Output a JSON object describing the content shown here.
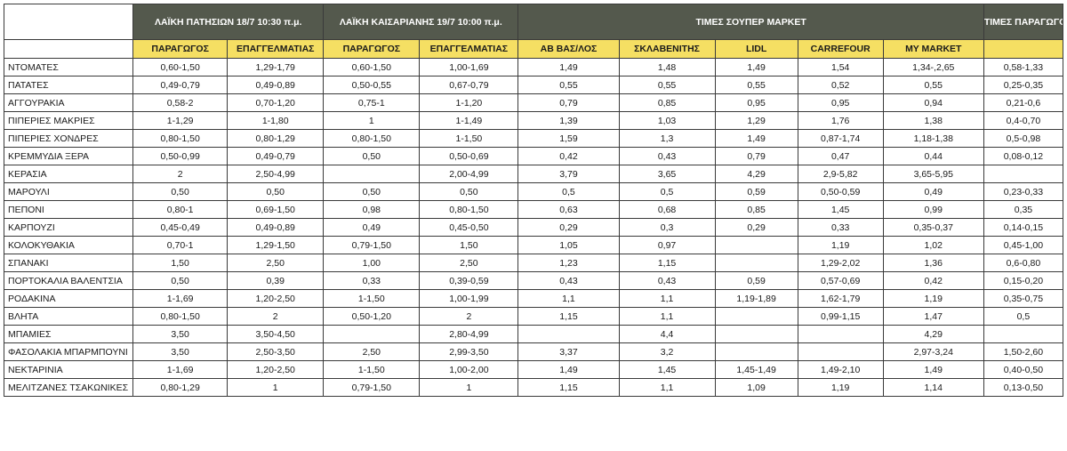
{
  "groups": {
    "g1": "ΛΑΪΚΗ ΠΑΤΗΣΙΩΝ 18/7 10:30 π.μ.",
    "g2": "ΛΑΪΚΗ ΚΑΙΣΑΡΙΑΝΗΣ 19/7 10:00 π.μ.",
    "g3": "ΤΙΜΕΣ ΣΟΥΠΕΡ ΜΑΡΚΕΤ",
    "g4": "ΤΙΜΕΣ ΠΑΡΑΓΩΓΟΥ"
  },
  "columns": [
    "ΠΑΡΑΓΩΓΟΣ",
    "ΕΠΑΓΓΕΛΜΑΤΙΑΣ",
    "ΠΑΡΑΓΩΓΟΣ",
    "ΕΠΑΓΓΕΛΜΑΤΙΑΣ",
    "ΑΒ ΒΑΣ/ΛΟΣ",
    "ΣΚΛΑΒΕΝΙΤΗΣ",
    "LIDL",
    "CARREFOUR",
    "MY MARKET",
    ""
  ],
  "rows": [
    [
      "ΝΤΟΜΑΤΕΣ",
      "0,60-1,50",
      "1,29-1,79",
      "0,60-1,50",
      "1,00-1,69",
      "1,49",
      "1,48",
      "1,49",
      "1,54",
      "1,34-,2,65",
      "0,58-1,33"
    ],
    [
      "ΠΑΤΑΤΕΣ",
      "0,49-0,79",
      "0,49-0,89",
      "0,50-0,55",
      "0,67-0,79",
      "0,55",
      "0,55",
      "0,55",
      "0,52",
      "0,55",
      "0,25-0,35"
    ],
    [
      "ΑΓΓΟΥΡΑΚΙΑ",
      "0,58-2",
      "0,70-1,20",
      "0,75-1",
      "1-1,20",
      "0,79",
      "0,85",
      "0,95",
      "0,95",
      "0,94",
      "0,21-0,6"
    ],
    [
      "ΠΙΠΕΡΙΕΣ ΜΑΚΡΙΕΣ",
      "1-1,29",
      "1-1,80",
      "1",
      "1-1,49",
      "1,39",
      "1,03",
      "1,29",
      "1,76",
      "1,38",
      "0,4-0,70"
    ],
    [
      "ΠΙΠΕΡΙΕΣ ΧΟΝΔΡΕΣ",
      "0,80-1,50",
      "0,80-1,29",
      "0,80-1,50",
      "1-1,50",
      "1,59",
      "1,3",
      "1,49",
      "0,87-1,74",
      "1,18-1,38",
      "0,5-0,98"
    ],
    [
      "ΚΡΕΜΜΥΔΙΑ ΞΕΡΑ",
      "0,50-0,99",
      "0,49-0,79",
      "0,50",
      "0,50-0,69",
      "0,42",
      "0,43",
      "0,79",
      "0,47",
      "0,44",
      "0,08-0,12"
    ],
    [
      "ΚΕΡΑΣΙΑ",
      "2",
      "2,50-4,99",
      "",
      "2,00-4,99",
      "3,79",
      "3,65",
      "4,29",
      "2,9-5,82",
      "3,65-5,95",
      ""
    ],
    [
      "ΜΑΡΟΥΛΙ",
      "0,50",
      "0,50",
      "0,50",
      "0,50",
      "0,5",
      "0,5",
      "0,59",
      "0,50-0,59",
      "0,49",
      "0,23-0,33"
    ],
    [
      "ΠΕΠΟΝΙ",
      "0,80-1",
      "0,69-1,50",
      "0,98",
      "0,80-1,50",
      "0,63",
      "0,68",
      "0,85",
      "1,45",
      "0,99",
      "0,35"
    ],
    [
      "ΚΑΡΠΟΥΖΙ",
      "0,45-0,49",
      "0,49-0,89",
      "0,49",
      "0,45-0,50",
      "0,29",
      "0,3",
      "0,29",
      "0,33",
      "0,35-0,37",
      "0,14-0,15"
    ],
    [
      "ΚΟΛΟΚΥΘΑΚΙΑ",
      "0,70-1",
      "1,29-1,50",
      "0,79-1,50",
      "1,50",
      "1,05",
      "0,97",
      "",
      "1,19",
      "1,02",
      "0,45-1,00"
    ],
    [
      "ΣΠΑΝΑΚΙ",
      "1,50",
      "2,50",
      "1,00",
      "2,50",
      "1,23",
      "1,15",
      "",
      "1,29-2,02",
      "1,36",
      "0,6-0,80"
    ],
    [
      "ΠΟΡΤΟΚΑΛΙΑ ΒΑΛΕΝΤΣΙΑ",
      "0,50",
      "0,39",
      "0,33",
      "0,39-0,59",
      "0,43",
      "0,43",
      "0,59",
      "0,57-0,69",
      "0,42",
      "0,15-0,20"
    ],
    [
      "ΡΟΔΑΚΙΝΑ",
      "1-1,69",
      "1,20-2,50",
      "1-1,50",
      "1,00-1,99",
      "1,1",
      "1,1",
      "1,19-1,89",
      "1,62-1,79",
      "1,19",
      "0,35-0,75"
    ],
    [
      "ΒΛΗΤΑ",
      "0,80-1,50",
      "2",
      "0,50-1,20",
      "2",
      "1,15",
      "1,1",
      "",
      "0,99-1,15",
      "1,47",
      "0,5"
    ],
    [
      "ΜΠΑΜΙΕΣ",
      "3,50",
      "3,50-4,50",
      "",
      "2,80-4,99",
      "",
      "4,4",
      "",
      "",
      "4,29",
      ""
    ],
    [
      "ΦΑΣΟΛΑΚΙΑ ΜΠΑΡΜΠΟΥΝΙ",
      "3,50",
      "2,50-3,50",
      "2,50",
      "2,99-3,50",
      "3,37",
      "3,2",
      "",
      "",
      "2,97-3,24",
      "1,50-2,60"
    ],
    [
      "ΝΕΚΤΑΡΙΝΙΑ",
      "1-1,69",
      "1,20-2,50",
      "1-1,50",
      "1,00-2,00",
      "1,49",
      "1,45",
      "1,45-1,49",
      "1,49-2,10",
      "1,49",
      "0,40-0,50"
    ],
    [
      "ΜΕΛΙΤΖΑΝΕΣ ΤΣΑΚΩΝΙΚΕΣ",
      "0,80-1,29",
      "1",
      "0,79-1,50",
      "1",
      "1,15",
      "1,1",
      "1,09",
      "1,19",
      "1,14",
      "0,13-0,50"
    ]
  ]
}
